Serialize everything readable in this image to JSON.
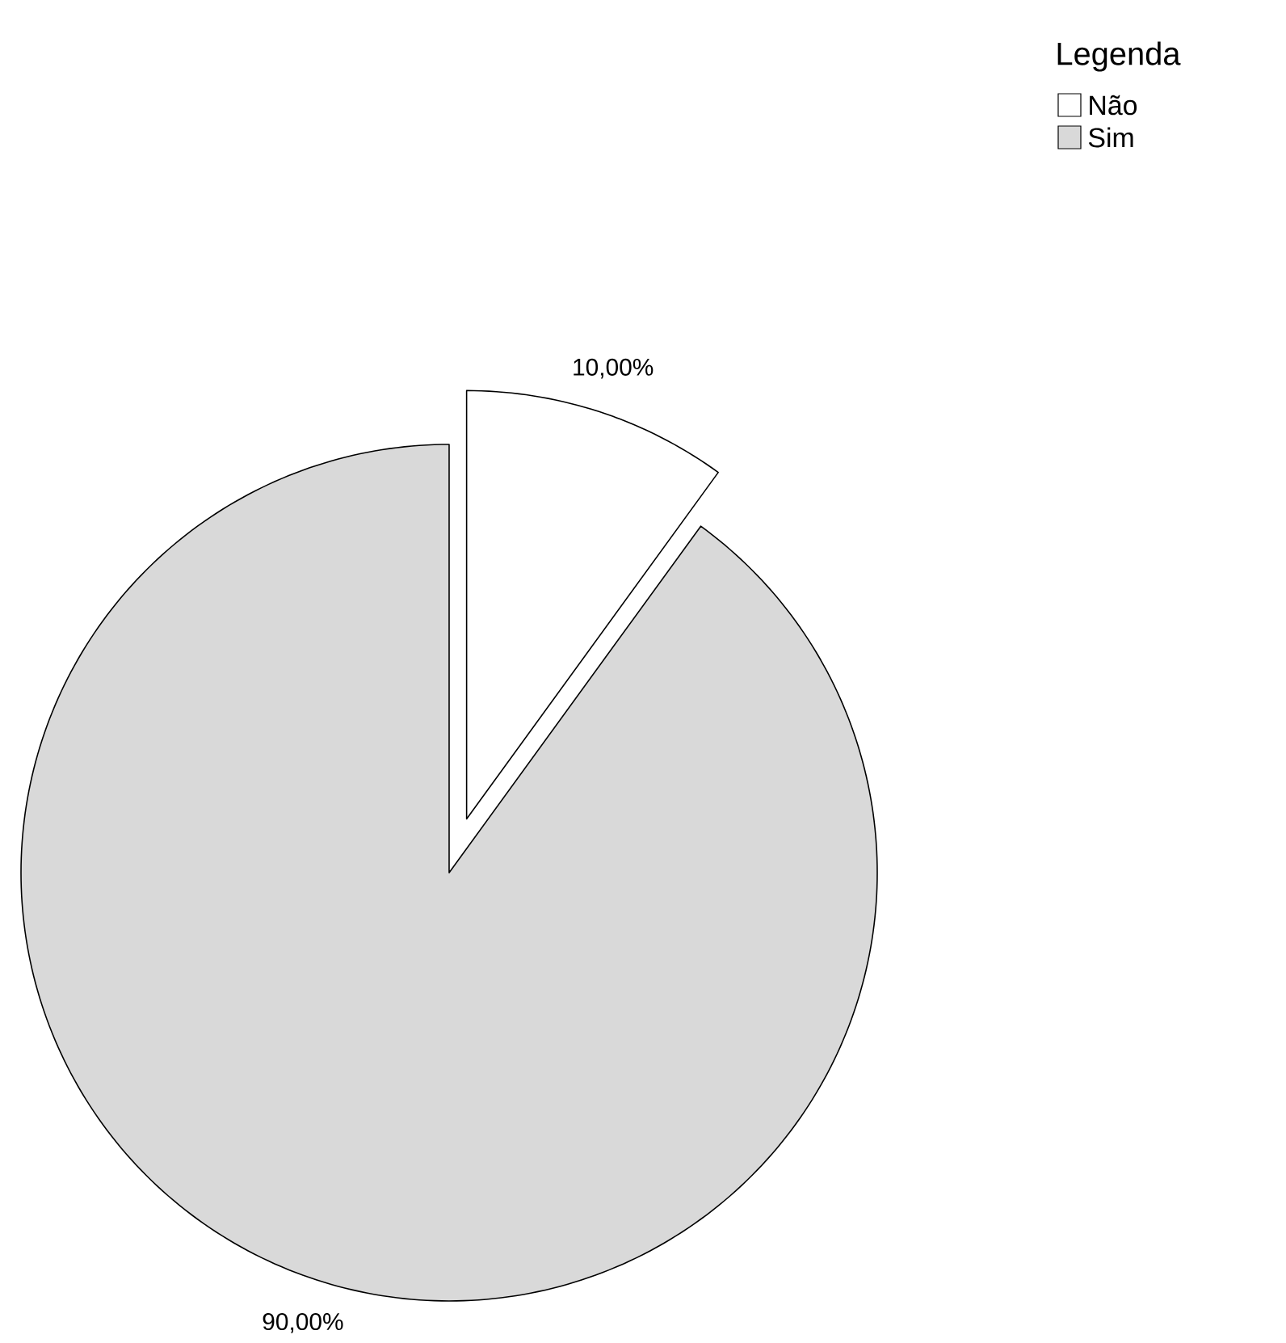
{
  "chart_data": {
    "type": "pie",
    "legend_title": "Legenda",
    "legend": "top right",
    "categories": [
      "Não",
      "Sim"
    ],
    "values": [
      10,
      90
    ],
    "colors": [
      "#ffffff",
      "#d9d9d9"
    ],
    "value_labels": [
      "10,00%",
      "90,00%"
    ]
  }
}
